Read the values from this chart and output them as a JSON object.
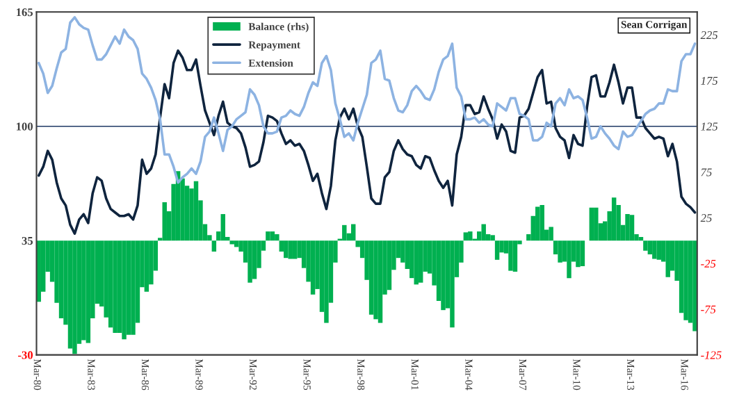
{
  "chart_data": {
    "type": "line",
    "categories": [
      "Mar-80",
      null,
      null,
      null,
      null,
      null,
      null,
      null,
      null,
      null,
      null,
      null,
      "Mar-83",
      null,
      null,
      null,
      null,
      null,
      null,
      null,
      null,
      null,
      null,
      null,
      "Mar-86",
      null,
      null,
      null,
      null,
      null,
      null,
      null,
      null,
      null,
      null,
      null,
      "Mar-89",
      null,
      null,
      null,
      null,
      null,
      null,
      null,
      null,
      null,
      null,
      null,
      "Mar-92",
      null,
      null,
      null,
      null,
      null,
      null,
      null,
      null,
      null,
      null,
      null,
      "Mar-95",
      null,
      null,
      null,
      null,
      null,
      null,
      null,
      null,
      null,
      null,
      null,
      "Mar-98",
      null,
      null,
      null,
      null,
      null,
      null,
      null,
      null,
      null,
      null,
      null,
      "Mar-01",
      null,
      null,
      null,
      null,
      null,
      null,
      null,
      null,
      null,
      null,
      null,
      "Mar-04",
      null,
      null,
      null,
      null,
      null,
      null,
      null,
      null,
      null,
      null,
      null,
      "Mar-07",
      null,
      null,
      null,
      null,
      null,
      null,
      null,
      null,
      null,
      null,
      null,
      "Mar-10",
      null,
      null,
      null,
      null,
      null,
      null,
      null,
      null,
      null,
      null,
      null,
      "Mar-13",
      null,
      null,
      null,
      null,
      null,
      null,
      null,
      null,
      null,
      null,
      null,
      "Mar-16",
      null,
      null
    ],
    "series": [
      {
        "name": "Balance (rhs)",
        "type": "bar",
        "axis": "y2",
        "color": "#00b050",
        "values": [
          -67,
          -56,
          -34,
          -45,
          -68,
          -85,
          -92,
          -118,
          -124,
          -113,
          -109,
          -112,
          -85,
          -69,
          -72,
          -84,
          -95,
          -101,
          -101,
          -108,
          -103,
          -103,
          -90,
          -51,
          -56,
          -48,
          -33,
          3,
          42,
          32,
          62,
          76,
          68,
          60,
          57,
          65,
          44,
          18,
          6,
          -12,
          10,
          29,
          4,
          -4,
          -7,
          -12,
          -24,
          -46,
          -42,
          -30,
          -11,
          10,
          10,
          7,
          -12,
          -19,
          -20,
          -20,
          -19,
          -30,
          -45,
          -59,
          -53,
          -78,
          -90,
          -68,
          -24,
          2,
          17,
          8,
          18,
          -7,
          -19,
          -43,
          -81,
          -86,
          -90,
          -59,
          -54,
          -32,
          -19,
          -24,
          -31,
          -41,
          -48,
          -46,
          -34,
          -36,
          -49,
          -66,
          -76,
          -74,
          -95,
          -40,
          -24,
          9,
          10,
          2,
          10,
          18,
          7,
          6,
          -21,
          -13,
          -14,
          -33,
          -34,
          -4,
          0,
          7,
          27,
          37,
          39,
          12,
          15,
          -15,
          -24,
          -23,
          -41,
          -23,
          -29,
          -28,
          0,
          36,
          36,
          19,
          21,
          32,
          47,
          39,
          17,
          29,
          28,
          7,
          4,
          -11,
          -15,
          -20,
          -21,
          -23,
          -40,
          -33,
          -44,
          -79,
          -87,
          -90,
          -99
        ]
      },
      {
        "name": "Repayment",
        "color": "#0f243e",
        "values": [
          72,
          77,
          86,
          81,
          68,
          59,
          55,
          44,
          39,
          47,
          50,
          45,
          62,
          71,
          69,
          59,
          53,
          51,
          49,
          49,
          50,
          47,
          55,
          81,
          73,
          76,
          84,
          105,
          124,
          116,
          136,
          143,
          139,
          132,
          132,
          138,
          123,
          109,
          102,
          95,
          106,
          114,
          102,
          100,
          99,
          96,
          88,
          77,
          78,
          80,
          91,
          106,
          105,
          103,
          96,
          90,
          92,
          89,
          90,
          86,
          78,
          69,
          73,
          62,
          53,
          66,
          92,
          105,
          110,
          104,
          110,
          100,
          94,
          77,
          59,
          56,
          56,
          71,
          74,
          86,
          92,
          87,
          84,
          83,
          78,
          76,
          83,
          82,
          75,
          69,
          65,
          69,
          55,
          84,
          94,
          112,
          112,
          107,
          108,
          117,
          110,
          104,
          93,
          101,
          97,
          86,
          85,
          105,
          106,
          110,
          119,
          128,
          132,
          113,
          114,
          99,
          94,
          92,
          82,
          95,
          90,
          89,
          111,
          128,
          129,
          117,
          117,
          125,
          135,
          125,
          113,
          122,
          122,
          105,
          105,
          99,
          96,
          93,
          94,
          93,
          83,
          90,
          80,
          60,
          56,
          54,
          51
        ]
      },
      {
        "name": "Extension",
        "color": "#8db3e2",
        "values": [
          136,
          130,
          119,
          123,
          133,
          142,
          144,
          159,
          162,
          158,
          156,
          155,
          146,
          138,
          138,
          141,
          146,
          151,
          147,
          155,
          151,
          149,
          144,
          130,
          127,
          122,
          115,
          104,
          84,
          84,
          77,
          68,
          71,
          73,
          76,
          73,
          80,
          94,
          97,
          105,
          96,
          86,
          98,
          100,
          104,
          106,
          108,
          121,
          118,
          112,
          100,
          96,
          96,
          97,
          105,
          106,
          109,
          107,
          106,
          111,
          119,
          125,
          123,
          136,
          140,
          132,
          113,
          104,
          94,
          96,
          92,
          102,
          110,
          118,
          136,
          138,
          143,
          127,
          126,
          116,
          109,
          108,
          112,
          120,
          123,
          120,
          116,
          115,
          121,
          131,
          138,
          140,
          147,
          122,
          117,
          104,
          104,
          105,
          102,
          104,
          101,
          100,
          113,
          111,
          109,
          116,
          116,
          107,
          106,
          104,
          92,
          92,
          94,
          102,
          100,
          113,
          116,
          112,
          121,
          116,
          117,
          115,
          105,
          93,
          94,
          100,
          96,
          93,
          89,
          87,
          97,
          94,
          95,
          99,
          103,
          107,
          109,
          110,
          113,
          113,
          121,
          120,
          120,
          137,
          141,
          141,
          147
        ]
      }
    ],
    "ylim": [
      -30,
      165
    ],
    "yticks": [
      165,
      100,
      35,
      -30
    ],
    "y2lim": [
      -125,
      250
    ],
    "y2ticks": [
      225,
      175,
      125,
      75,
      25,
      -25,
      -75,
      -125
    ],
    "ref_lines": [
      {
        "axis": "y",
        "value": 100,
        "color": "#1f3864"
      }
    ],
    "annotations": [
      "Sean Corrigan"
    ],
    "legend": "top",
    "grid": false
  }
}
